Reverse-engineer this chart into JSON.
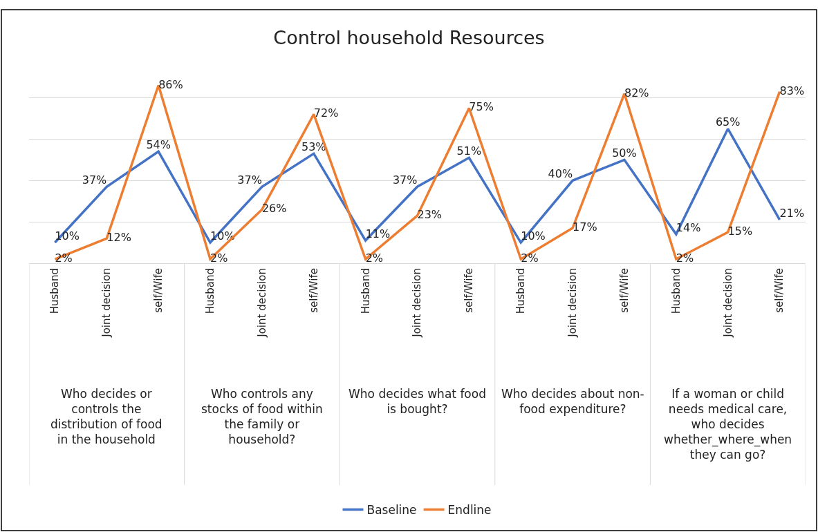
{
  "chart_data": {
    "type": "line",
    "title": "Control household Resources",
    "categories": [
      "Husband",
      "Joint decision",
      "self/Wife",
      "Husband",
      "Joint decision",
      "self/Wife",
      "Husband",
      "Joint decision",
      "self/Wife",
      "Husband",
      "Joint decision",
      "self/Wife",
      "Husband",
      "Joint decision",
      "self/Wife"
    ],
    "series": [
      {
        "name": "Baseline",
        "color": "#4472c4",
        "values": [
          10,
          37,
          54,
          10,
          37,
          53,
          11,
          37,
          51,
          10,
          40,
          50,
          14,
          65,
          21
        ],
        "value_labels": [
          "10%",
          "37%",
          "54%",
          "10%",
          "37%",
          "53%",
          "11%",
          "37%",
          "51%",
          "10%",
          "40%",
          "50%",
          "14%",
          "65%",
          "21%"
        ]
      },
      {
        "name": "Endline",
        "color": "#ed7d31",
        "values": [
          2,
          12,
          86,
          2,
          26,
          72,
          2,
          23,
          75,
          2,
          17,
          82,
          2,
          15,
          83
        ],
        "value_labels": [
          "2%",
          "12%",
          "86%",
          "2%",
          "26%",
          "72%",
          "2%",
          "23%",
          "75%",
          "2%",
          "17%",
          "82%",
          "2%",
          "15%",
          "83%"
        ]
      }
    ],
    "annotations": [
      "Who decides or controls the distribution of food in the household",
      "Who controls any stocks of food within the family or household?",
      "Who decides what food is bought?",
      "Who decides about non-food expenditure?",
      "If a woman or child needs medical care, who decides whether_where_when they can go?"
    ],
    "grid": "y",
    "legend": "bottom",
    "tick_labels": "x",
    "marker": "none",
    "line_style": "solid"
  }
}
